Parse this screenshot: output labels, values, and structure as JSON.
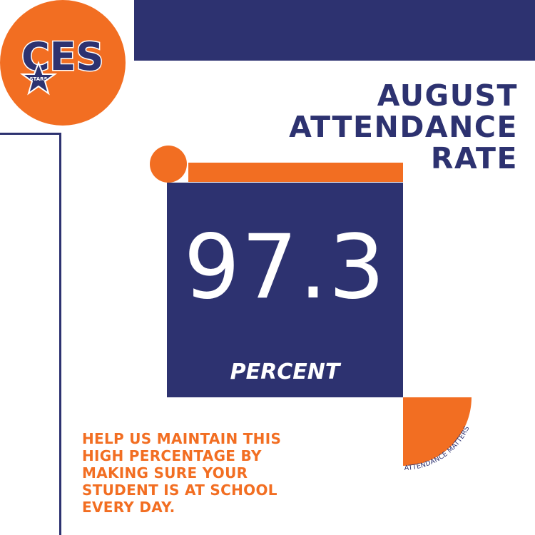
{
  "logo": {
    "letters": "CES",
    "star_text": "STARS"
  },
  "title": {
    "line1": "AUGUST",
    "line2": "ATTENDANCE",
    "line3": "RATE"
  },
  "stat": {
    "value": "97.3",
    "unit": "PERCENT"
  },
  "message": "HELP US MAINTAIN THIS HIGH PERCENTAGE BY MAKING SURE YOUR STUDENT IS AT SCHOOL EVERY DAY.",
  "tagline": "ATTENDANCE MATTERS",
  "colors": {
    "navy": "#2d3270",
    "orange": "#f26e22",
    "white": "#ffffff"
  },
  "icons": [
    "star-icon"
  ]
}
